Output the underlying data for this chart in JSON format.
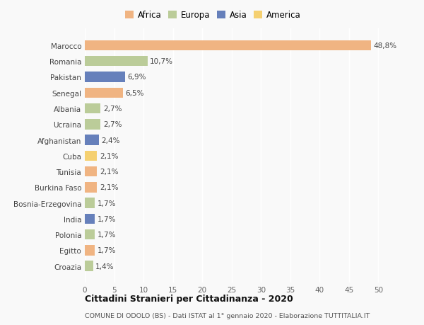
{
  "countries": [
    "Croazia",
    "Egitto",
    "Polonia",
    "India",
    "Bosnia-Erzegovina",
    "Burkina Faso",
    "Tunisia",
    "Cuba",
    "Afghanistan",
    "Ucraina",
    "Albania",
    "Senegal",
    "Pakistan",
    "Romania",
    "Marocco"
  ],
  "values": [
    1.4,
    1.7,
    1.7,
    1.7,
    1.7,
    2.1,
    2.1,
    2.1,
    2.4,
    2.7,
    2.7,
    6.5,
    6.9,
    10.7,
    48.8
  ],
  "continents": [
    "Europa",
    "Africa",
    "Europa",
    "Asia",
    "Europa",
    "Africa",
    "Africa",
    "America",
    "Asia",
    "Europa",
    "Europa",
    "Africa",
    "Asia",
    "Europa",
    "Africa"
  ],
  "colors": {
    "Africa": "#F0B482",
    "Europa": "#BBCC99",
    "Asia": "#6680BB",
    "America": "#F5D070"
  },
  "legend_order": [
    "Africa",
    "Europa",
    "Asia",
    "America"
  ],
  "title": "Cittadini Stranieri per Cittadinanza - 2020",
  "subtitle": "COMUNE DI ODOLO (BS) - Dati ISTAT al 1° gennaio 2020 - Elaborazione TUTTITALIA.IT",
  "xlabel_ticks": [
    0,
    5,
    10,
    15,
    20,
    25,
    30,
    35,
    40,
    45,
    50
  ],
  "xlim": [
    0,
    52
  ],
  "bg_color": "#f9f9f9"
}
